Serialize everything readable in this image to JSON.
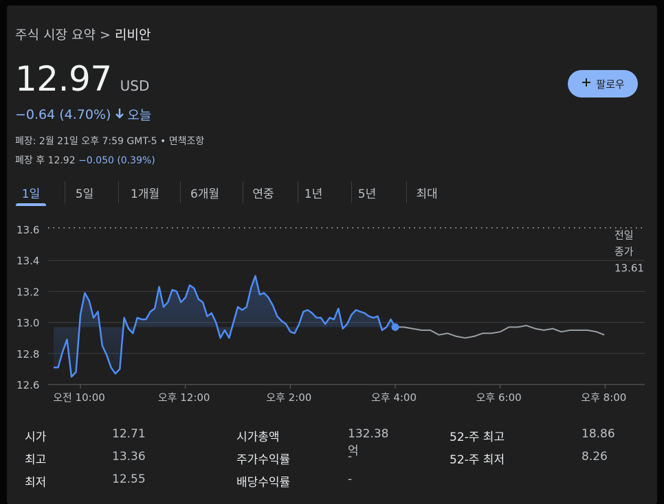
{
  "breadcrumb": {
    "parent": "주식 시장 요약",
    "separator": ">",
    "current": "리비안"
  },
  "quote": {
    "price": "12.97",
    "currency": "USD",
    "change": "−0.64 (4.70%)",
    "change_direction": "down",
    "change_period": "오늘",
    "closed_info": "폐장: 2월 21일 오후 7:59 GMT-5 • 면책조항",
    "after_hours_label": "폐장 후 12.92",
    "after_hours_change": "−0.050 (0.39%)"
  },
  "follow_button": {
    "label": "팔로우",
    "icon": "plus-icon"
  },
  "tabs": [
    {
      "label": "1일",
      "active": true
    },
    {
      "label": "5일"
    },
    {
      "label": "1개월"
    },
    {
      "label": "6개월"
    },
    {
      "label": "연중"
    },
    {
      "label": "1년"
    },
    {
      "label": "5년"
    },
    {
      "label": "최대"
    }
  ],
  "chart_data": {
    "type": "line",
    "y_ticks": [
      "13.6",
      "13.4",
      "13.2",
      "13.0",
      "12.8",
      "12.6"
    ],
    "ylim": [
      12.6,
      13.6
    ],
    "x_ticks": [
      "오전 10:00",
      "오후 12:00",
      "오후 2:00",
      "오후 4:00",
      "오후 6:00",
      "오후 8:00"
    ],
    "previous_close": {
      "label_line1": "전일",
      "label_line2": "종가",
      "value": "13.61"
    },
    "colors": {
      "session": "#4f8df5",
      "after_hours": "#9aa0a6",
      "grid": "#3c4043",
      "baseline": "#bdc1c6"
    },
    "series": [
      {
        "session": "regular",
        "x": [
          "9:30",
          "9:35",
          "9:40",
          "9:45",
          "9:50",
          "9:55",
          "10:00",
          "10:05",
          "10:10",
          "10:15",
          "10:20",
          "10:25",
          "10:30",
          "10:35",
          "10:40",
          "10:45",
          "10:50",
          "10:55",
          "11:00",
          "11:05",
          "11:10",
          "11:15",
          "11:20",
          "11:25",
          "11:30",
          "11:35",
          "11:40",
          "11:45",
          "11:50",
          "11:55",
          "12:00",
          "12:05",
          "12:10",
          "12:15",
          "12:20",
          "12:25",
          "12:30",
          "12:35",
          "12:40",
          "12:45",
          "12:50",
          "12:55",
          "13:00",
          "13:05",
          "13:10",
          "13:15",
          "13:20",
          "13:25",
          "13:30",
          "13:35",
          "13:40",
          "13:45",
          "13:50",
          "13:55",
          "14:00",
          "14:05",
          "14:10",
          "14:15",
          "14:20",
          "14:25",
          "14:30",
          "14:35",
          "14:40",
          "14:45",
          "14:50",
          "14:55",
          "15:00",
          "15:05",
          "15:10",
          "15:15",
          "15:20",
          "15:25",
          "15:30",
          "15:35",
          "15:40",
          "15:45",
          "15:50",
          "15:55",
          "16:00"
        ],
        "values": [
          12.71,
          12.71,
          12.81,
          12.89,
          12.65,
          12.68,
          13.05,
          13.19,
          13.14,
          13.03,
          13.07,
          12.85,
          12.79,
          12.71,
          12.67,
          12.7,
          13.03,
          12.96,
          12.93,
          13.03,
          13.02,
          13.02,
          13.07,
          13.09,
          13.23,
          13.1,
          13.13,
          13.21,
          13.2,
          13.13,
          13.16,
          13.24,
          13.22,
          13.15,
          13.13,
          13.04,
          13.06,
          13.0,
          12.9,
          12.95,
          12.9,
          13.0,
          13.1,
          13.08,
          13.1,
          13.22,
          13.3,
          13.18,
          13.19,
          13.16,
          13.11,
          13.04,
          13.01,
          12.99,
          12.94,
          12.93,
          12.99,
          13.07,
          13.08,
          13.06,
          13.03,
          13.03,
          12.99,
          13.03,
          13.02,
          13.09,
          12.96,
          12.99,
          13.05,
          13.08,
          13.07,
          13.06,
          13.04,
          13.03,
          13.04,
          12.95,
          12.97,
          13.02,
          12.97
        ]
      },
      {
        "session": "after_hours",
        "x": [
          "16:00",
          "16:10",
          "16:20",
          "16:30",
          "16:40",
          "16:50",
          "17:00",
          "17:10",
          "17:20",
          "17:30",
          "17:40",
          "17:50",
          "18:00",
          "18:10",
          "18:20",
          "18:30",
          "18:40",
          "18:50",
          "19:00",
          "19:10",
          "19:20",
          "19:30",
          "19:40",
          "19:50",
          "19:59"
        ],
        "values": [
          12.97,
          12.97,
          12.96,
          12.95,
          12.95,
          12.92,
          12.93,
          12.91,
          12.9,
          12.91,
          12.93,
          12.93,
          12.94,
          12.97,
          12.97,
          12.98,
          12.96,
          12.95,
          12.96,
          12.94,
          12.95,
          12.95,
          12.95,
          12.94,
          12.92
        ]
      }
    ]
  },
  "stats": {
    "col1": [
      {
        "label": "시가",
        "value": "12.71"
      },
      {
        "label": "최고",
        "value": "13.36"
      },
      {
        "label": "최저",
        "value": "12.55"
      }
    ],
    "col2": [
      {
        "label": "시가총액",
        "value": "132.38억"
      },
      {
        "label": "주가수익률",
        "value": "-"
      },
      {
        "label": "배당수익률",
        "value": "-"
      }
    ],
    "col3": [
      {
        "label": "52-주 최고",
        "value": "18.86"
      },
      {
        "label": "52-주 최저",
        "value": "8.26"
      }
    ]
  }
}
